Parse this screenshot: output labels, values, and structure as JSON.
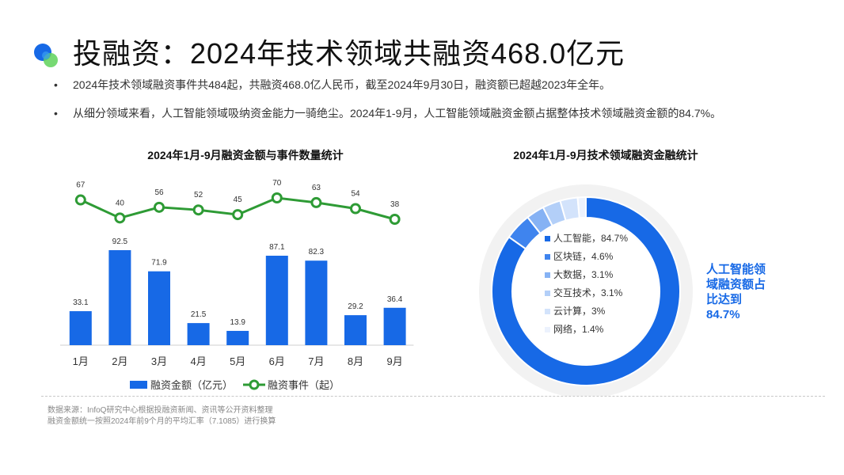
{
  "header": {
    "title": "投融资：2024年技术领域共融资468.0亿元"
  },
  "bullets": [
    "2024年技术领域融资事件共484起，共融资468.0亿人民币，截至2024年9月30日，融资额已超越2023年全年。",
    "从细分领域来看，人工智能领域吸纳资金能力一骑绝尘。2024年1-9月，人工智能领域融资金额占据整体技术领域融资金额的84.7%。"
  ],
  "colors": {
    "bar": "#1769e6",
    "line": "#2e9b35",
    "pie_track": "#f2f2f2"
  },
  "chart_data": [
    {
      "type": "bar",
      "title": "2024年1月-9月融资金额与事件数量统计",
      "categories": [
        "1月",
        "2月",
        "3月",
        "4月",
        "5月",
        "6月",
        "7月",
        "8月",
        "9月"
      ],
      "series": [
        {
          "name": "融资金额（亿元）",
          "type": "bar",
          "values": [
            33.1,
            92.5,
            71.9,
            21.5,
            13.9,
            87.1,
            82.3,
            29.2,
            36.4
          ]
        },
        {
          "name": "融资事件（起）",
          "type": "line",
          "values": [
            67,
            40,
            56,
            52,
            45,
            70,
            63,
            54,
            38
          ]
        }
      ],
      "legend": "bottom"
    },
    {
      "type": "pie",
      "title": "2024年1月-9月技术领域融资金融统计",
      "slices": [
        {
          "label": "人工智能",
          "value": 84.7,
          "display": "84.7%",
          "color": "#1769e6"
        },
        {
          "label": "区块链",
          "value": 4.6,
          "display": "4.6%",
          "color": "#3f84ee"
        },
        {
          "label": "大数据",
          "value": 3.1,
          "display": "3.1%",
          "color": "#86b2f4"
        },
        {
          "label": "交互技术",
          "value": 3.1,
          "display": "3.1%",
          "color": "#b3cff8"
        },
        {
          "label": "云计算",
          "value": 3,
          "display": "3%",
          "color": "#d3e3fb"
        },
        {
          "label": "网络",
          "value": 1.4,
          "display": "1.4%",
          "color": "#ecf2fd"
        }
      ],
      "annotation": "人工智能领域融资额占比达到84.7%",
      "annotation_lines": [
        "人工智能领",
        "域融资额占",
        "比达到",
        "84.7%"
      ]
    }
  ],
  "footer": {
    "source_lines": [
      "数据来源：InfoQ研究中心根据投融资新闻、资讯等公开资料整理",
      "融资金额统一按照2024年前9个月的平均汇率（7.1085）进行换算"
    ]
  }
}
